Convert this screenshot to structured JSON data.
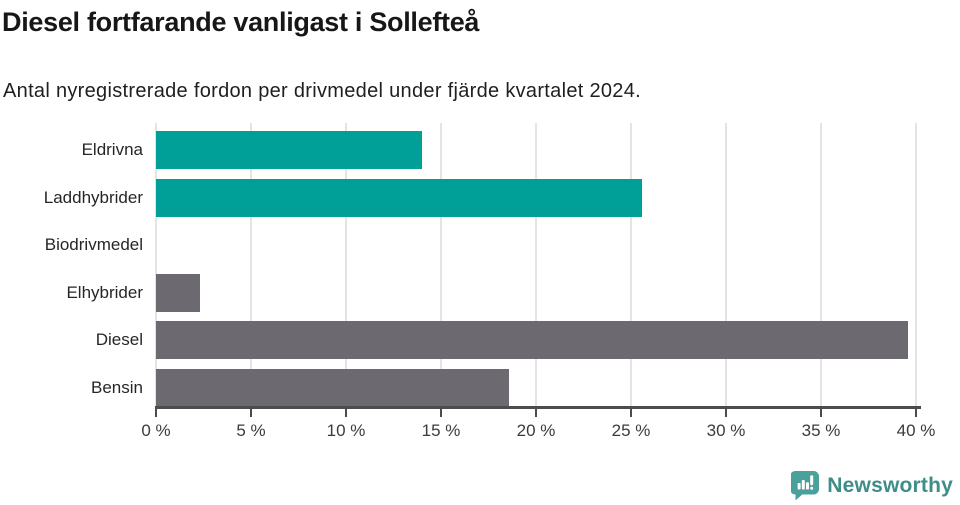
{
  "header": {
    "title": "Diesel fortfarande vanligast i Sollefteå",
    "subtitle": "Antal nyregistrerade fordon per drivmedel under fjärde kvartalet 2024."
  },
  "chart_data": {
    "type": "bar",
    "orientation": "horizontal",
    "title": "Diesel fortfarande vanligast i Sollefteå",
    "subtitle": "Antal nyregistrerade fordon per drivmedel under fjärde kvartalet 2024.",
    "categories": [
      "Eldrivna",
      "Laddhybrider",
      "Biodrivmedel",
      "Elhybrider",
      "Diesel",
      "Bensin"
    ],
    "values": [
      14.0,
      25.6,
      0,
      2.3,
      39.6,
      18.6
    ],
    "unit": "%",
    "bar_colors": [
      "#00a099",
      "#00a099",
      "#6c6a70",
      "#6c6a70",
      "#6c6a70",
      "#6c6a70"
    ],
    "xlim": [
      0,
      40
    ],
    "x_ticks": [
      0,
      5,
      10,
      15,
      20,
      25,
      30,
      35,
      40
    ],
    "x_tick_labels": [
      "0 %",
      "5 %",
      "10 %",
      "15 %",
      "20 %",
      "25 %",
      "30 %",
      "35 %",
      "40 %"
    ],
    "xlabel": "",
    "ylabel": "",
    "grid": "vertical",
    "legend": "none",
    "value_labels": "none"
  },
  "colors": {
    "accent_teal": "#00a099",
    "neutral_gray": "#6c6a70",
    "axis": "#4c4c4f",
    "gridline": "#e4e4e4"
  },
  "footer": {
    "brand": "Newsworthy",
    "logo_icon": "newsworthy-speech-bubble-chart-icon",
    "brand_color": "#3e8d89",
    "logo_color": "#4aa19b"
  }
}
